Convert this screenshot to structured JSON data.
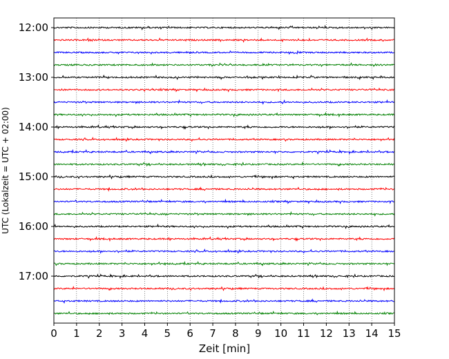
{
  "chart_data": {
    "type": "line",
    "title": "",
    "xlabel": "Zeit  [min]",
    "ylabel": "UTC (Lokalzeit = UTC + 02:00)",
    "xlim": [
      0,
      15
    ],
    "x_ticks": [
      "0",
      "1",
      "2",
      "3",
      "4",
      "5",
      "6",
      "7",
      "8",
      "9",
      "10",
      "11",
      "12",
      "13",
      "14",
      "15"
    ],
    "y_ticks": [
      "12:00",
      "13:00",
      "14:00",
      "15:00",
      "16:00",
      "17:00"
    ],
    "grid": "vertical dotted",
    "trace_interval_min": 15,
    "trace_colors": [
      "#000000",
      "#ff0000",
      "#0000ff",
      "#008000"
    ],
    "series": [
      {
        "start": "12:00",
        "color": "#000000"
      },
      {
        "start": "12:15",
        "color": "#ff0000"
      },
      {
        "start": "12:30",
        "color": "#0000ff"
      },
      {
        "start": "12:45",
        "color": "#008000"
      },
      {
        "start": "13:00",
        "color": "#000000"
      },
      {
        "start": "13:15",
        "color": "#ff0000"
      },
      {
        "start": "13:30",
        "color": "#0000ff"
      },
      {
        "start": "13:45",
        "color": "#008000"
      },
      {
        "start": "14:00",
        "color": "#000000"
      },
      {
        "start": "14:15",
        "color": "#ff0000"
      },
      {
        "start": "14:30",
        "color": "#0000ff"
      },
      {
        "start": "14:45",
        "color": "#008000"
      },
      {
        "start": "15:00",
        "color": "#000000"
      },
      {
        "start": "15:15",
        "color": "#ff0000"
      },
      {
        "start": "15:30",
        "color": "#0000ff"
      },
      {
        "start": "15:45",
        "color": "#008000"
      },
      {
        "start": "16:00",
        "color": "#000000"
      },
      {
        "start": "16:15",
        "color": "#ff0000"
      },
      {
        "start": "16:30",
        "color": "#0000ff"
      },
      {
        "start": "16:45",
        "color": "#008000"
      },
      {
        "start": "17:00",
        "color": "#000000"
      },
      {
        "start": "17:15",
        "color": "#ff0000"
      },
      {
        "start": "17:30",
        "color": "#0000ff"
      },
      {
        "start": "17:45",
        "color": "#008000"
      }
    ]
  }
}
